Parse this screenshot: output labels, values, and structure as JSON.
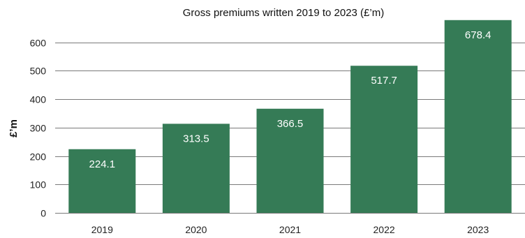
{
  "chart_data": {
    "type": "bar",
    "title": "Gross premiums written 2019 to 2023 (£’m)",
    "xlabel": "",
    "ylabel": "£’m",
    "categories": [
      "2019",
      "2020",
      "2021",
      "2022",
      "2023"
    ],
    "values": [
      224.1,
      313.5,
      366.5,
      517.7,
      678.4
    ],
    "data_labels": [
      "224.1",
      "313.5",
      "366.5",
      "517.7",
      "678.4"
    ],
    "ylim": [
      0,
      700
    ],
    "yticks": [
      0,
      100,
      200,
      300,
      400,
      500,
      600
    ],
    "ytick_labels": [
      "0",
      "100",
      "200",
      "300",
      "400",
      "500",
      "600"
    ],
    "grid": true,
    "legend": "none",
    "bar_color": "#357b56"
  }
}
